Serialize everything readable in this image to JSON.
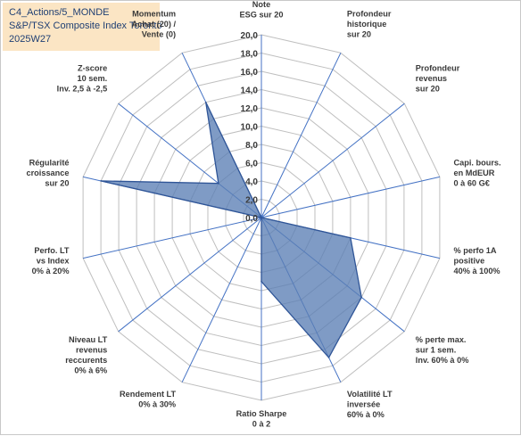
{
  "header": {
    "line1": "C4_Actions/5_MONDE",
    "line2": "S&P/TSX Composite Index Toronto",
    "line3": "2025W27"
  },
  "chart_data": {
    "type": "radar",
    "axes": [
      [
        "Note",
        "ESG sur 20"
      ],
      [
        "Profondeur",
        "historique",
        "sur 20"
      ],
      [
        "Profondeur",
        "revenus",
        "sur 20"
      ],
      [
        "Capi. bours.",
        "en MdEUR",
        "0 à 60 G€"
      ],
      [
        "% perfo 1A",
        "positive",
        "40% à 100%"
      ],
      [
        "% perte max.",
        "sur 1 sem.",
        "Inv. 60% à 0%"
      ],
      [
        "Volatilité LT",
        "inversée",
        "60% à 0%"
      ],
      [
        "Ratio Sharpe",
        "0 à 2"
      ],
      [
        "Rendement LT",
        "0% à 30%"
      ],
      [
        "Niveau LT",
        "revenus",
        "reccurents",
        "0% à 6%"
      ],
      [
        "Perfo. LT",
        "vs Index",
        "0% à 20%"
      ],
      [
        "Régularité",
        "croissance",
        "sur 20"
      ],
      [
        "Z-score",
        "10 sem.",
        "Inv. 2,5 à -2,5"
      ],
      [
        "Momentum",
        "Achat (20) /",
        "Vente (0)"
      ]
    ],
    "values": [
      0,
      0,
      0,
      0,
      10,
      14,
      17,
      7,
      0,
      0,
      0,
      18,
      6,
      14
    ],
    "rmin": 0,
    "rmax": 20,
    "tick_step": 2,
    "tick_labels": [
      "0,0",
      "2,0",
      "4,0",
      "6,0",
      "8,0",
      "10,0",
      "12,0",
      "14,0",
      "16,0",
      "18,0",
      "20,0"
    ],
    "colors": {
      "fill": "#5b7fb5",
      "stroke": "#2f5597",
      "spoke": "#4472c4",
      "grid": "#bfbfbf"
    }
  }
}
